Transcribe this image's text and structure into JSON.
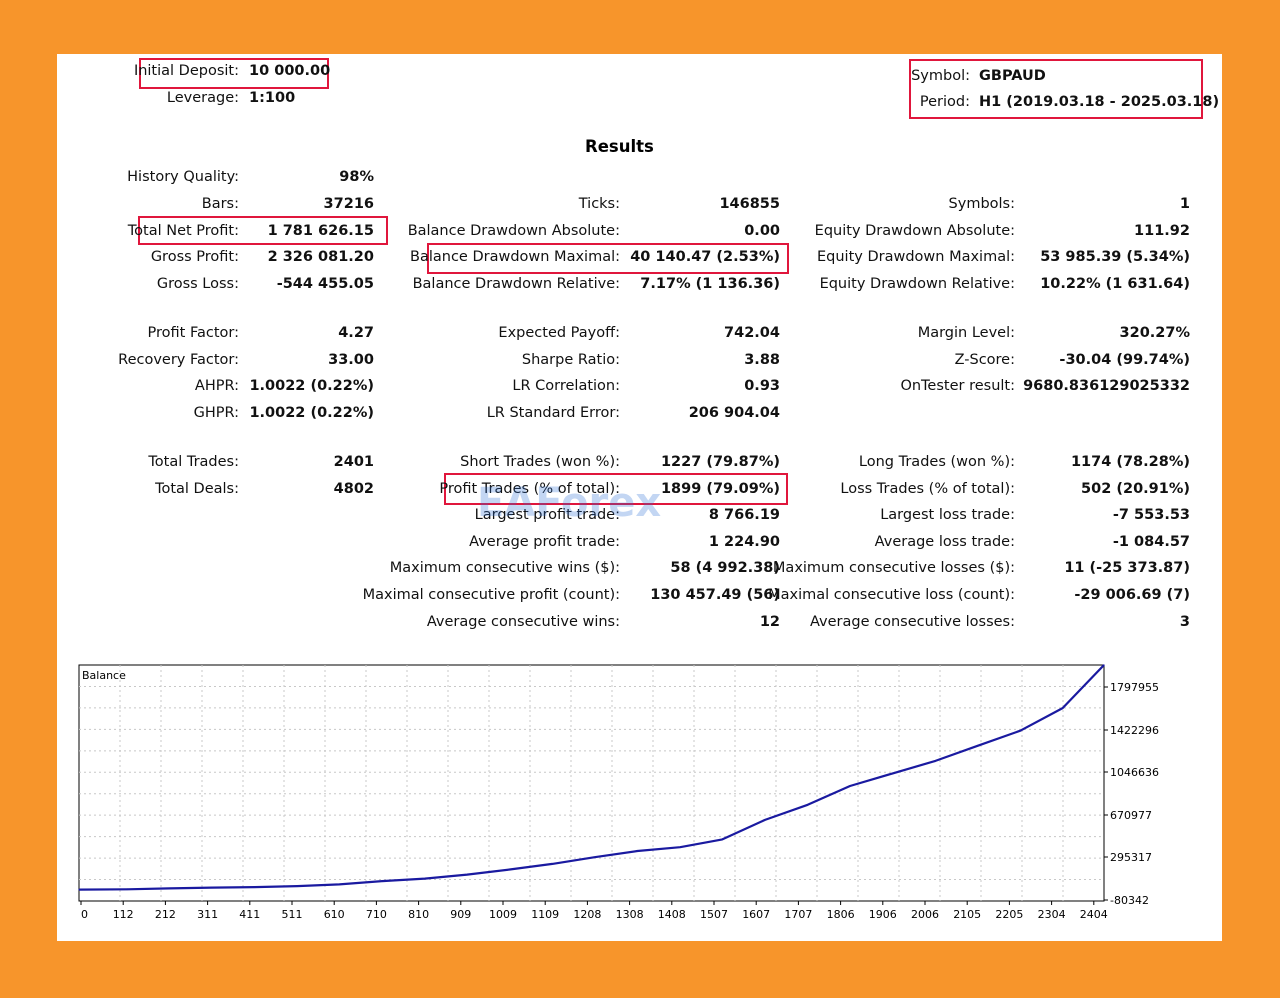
{
  "header": {
    "initial_deposit_label": "Initial Deposit:",
    "initial_deposit_value": "10 000.00",
    "leverage_label": "Leverage:",
    "leverage_value": "1:100",
    "symbol_label": "Symbol:",
    "symbol_value": "GBPAUD",
    "period_label": "Period:",
    "period_value": "H1 (2019.03.18 - 2025.03.18)"
  },
  "results_title": "Results",
  "col1": [
    {
      "label": "History Quality:",
      "value": "98%"
    },
    {
      "label": "Bars:",
      "value": "37216"
    },
    {
      "label": "Total Net Profit:",
      "value": "1 781 626.15"
    },
    {
      "label": "Gross Profit:",
      "value": "2 326 081.20"
    },
    {
      "label": "Gross Loss:",
      "value": "-544 455.05"
    },
    {
      "label": "Profit Factor:",
      "value": "4.27"
    },
    {
      "label": "Recovery Factor:",
      "value": "33.00"
    },
    {
      "label": "AHPR:",
      "value": "1.0022 (0.22%)"
    },
    {
      "label": "GHPR:",
      "value": "1.0022 (0.22%)"
    },
    {
      "label": "Total Trades:",
      "value": "2401"
    },
    {
      "label": "Total Deals:",
      "value": "4802"
    }
  ],
  "col2": [
    {
      "label": "Ticks:",
      "value": "146855"
    },
    {
      "label": "Balance Drawdown Absolute:",
      "value": "0.00"
    },
    {
      "label": "Balance Drawdown Maximal:",
      "value": "40 140.47 (2.53%)"
    },
    {
      "label": "Balance Drawdown Relative:",
      "value": "7.17% (1 136.36)"
    },
    {
      "label": "Expected Payoff:",
      "value": "742.04"
    },
    {
      "label": "Sharpe Ratio:",
      "value": "3.88"
    },
    {
      "label": "LR Correlation:",
      "value": "0.93"
    },
    {
      "label": "LR Standard Error:",
      "value": "206 904.04"
    },
    {
      "label": "Short Trades (won %):",
      "value": "1227 (79.87%)"
    },
    {
      "label": "Profit Trades (% of total):",
      "value": "1899 (79.09%)"
    },
    {
      "label": "Largest profit trade:",
      "value": "8 766.19"
    },
    {
      "label": "Average profit trade:",
      "value": "1 224.90"
    },
    {
      "label": "Maximum consecutive wins ($):",
      "value": "58 (4 992.38)"
    },
    {
      "label": "Maximal consecutive profit (count):",
      "value": "130 457.49 (56)"
    },
    {
      "label": "Average consecutive wins:",
      "value": "12"
    }
  ],
  "col3": [
    {
      "label": "Symbols:",
      "value": "1"
    },
    {
      "label": "Equity Drawdown Absolute:",
      "value": "111.92"
    },
    {
      "label": "Equity Drawdown Maximal:",
      "value": "53 985.39 (5.34%)"
    },
    {
      "label": "Equity Drawdown Relative:",
      "value": "10.22% (1 631.64)"
    },
    {
      "label": "Margin Level:",
      "value": "320.27%"
    },
    {
      "label": "Z-Score:",
      "value": "-30.04 (99.74%)"
    },
    {
      "label": "OnTester result:",
      "value": "9680.836129025332"
    },
    {
      "label": "Long Trades (won %):",
      "value": "1174 (78.28%)"
    },
    {
      "label": "Loss Trades (% of total):",
      "value": "502 (20.91%)"
    },
    {
      "label": "Largest loss trade:",
      "value": "-7 553.53"
    },
    {
      "label": "Average loss trade:",
      "value": "-1 084.57"
    },
    {
      "label": "Maximum consecutive losses ($):",
      "value": "11 (-25 373.87)"
    },
    {
      "label": "Maximal consecutive loss (count):",
      "value": "-29 006.69 (7)"
    },
    {
      "label": "Average consecutive losses:",
      "value": "3"
    }
  ],
  "watermark": "EAForex",
  "colors": {
    "background": "#f7952b",
    "highlight": "#e0163c",
    "line": "#1a1aa0"
  },
  "chart_data": {
    "type": "line",
    "title": "Balance",
    "xlabel": "",
    "ylabel": "",
    "x_ticks": [
      "0",
      "112",
      "212",
      "311",
      "411",
      "511",
      "610",
      "710",
      "810",
      "909",
      "1009",
      "1109",
      "1208",
      "1308",
      "1408",
      "1507",
      "1607",
      "1707",
      "1806",
      "1906",
      "2006",
      "2105",
      "2205",
      "2304",
      "2404"
    ],
    "y_ticks": [
      "1797955",
      "1422296",
      "1046636",
      "670977",
      "295317",
      "-80342"
    ],
    "xlim": [
      0,
      2401
    ],
    "ylim": [
      -80342,
      1797955
    ],
    "grid": true,
    "series": [
      {
        "name": "Balance",
        "x": [
          0,
          112,
          212,
          311,
          411,
          511,
          610,
          710,
          810,
          909,
          1009,
          1109,
          1208,
          1308,
          1408,
          1507,
          1607,
          1707,
          1806,
          1906,
          2006,
          2105,
          2205,
          2304,
          2404
        ],
        "y": [
          10000,
          13000,
          20000,
          26000,
          30000,
          38000,
          52000,
          78000,
          98000,
          130000,
          170000,
          215000,
          268000,
          318000,
          348000,
          410000,
          565000,
          685000,
          835000,
          935000,
          1035000,
          1155000,
          1275000,
          1455000,
          1797955
        ]
      }
    ]
  }
}
